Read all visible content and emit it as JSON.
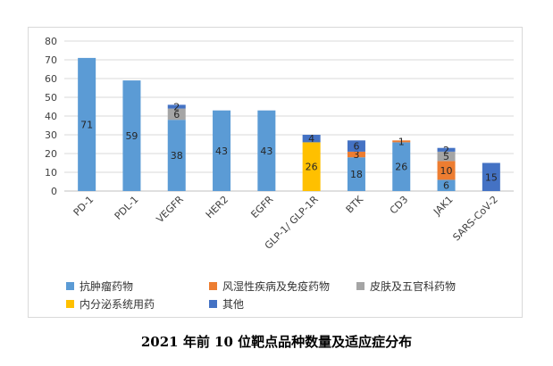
{
  "caption": "2021 年前 10 位靶点品种数量及适应症分布",
  "chart_data": {
    "type": "bar",
    "stacked": true,
    "title": "",
    "xlabel": "",
    "ylabel": "",
    "ylim": [
      0,
      80
    ],
    "yticks": [
      0,
      10,
      20,
      30,
      40,
      50,
      60,
      70,
      80
    ],
    "grid": true,
    "legend_position": "bottom",
    "categories": [
      "PD-1",
      "PDL-1",
      "VEGFR",
      "HER2",
      "EGFR",
      "GLP-1/ GLP-1R",
      "BTK",
      "CD3",
      "JAK1",
      "SARS-CoV-2"
    ],
    "series": [
      {
        "name": "抗肿瘤药物",
        "color": "#5b9bd5",
        "values": [
          71,
          59,
          38,
          43,
          43,
          null,
          18,
          26,
          6,
          null
        ]
      },
      {
        "name": "风湿性疾病及免疫药物",
        "color": "#ed7d31",
        "values": [
          null,
          null,
          null,
          null,
          null,
          null,
          3,
          1,
          10,
          null
        ]
      },
      {
        "name": "皮肤及五官科药物",
        "color": "#a5a5a5",
        "values": [
          null,
          null,
          6,
          null,
          null,
          null,
          null,
          null,
          5,
          null
        ]
      },
      {
        "name": "内分泌系统用药",
        "color": "#ffc000",
        "values": [
          null,
          null,
          null,
          null,
          null,
          26,
          null,
          null,
          null,
          null
        ]
      },
      {
        "name": "其他",
        "color": "#4472c4",
        "values": [
          null,
          null,
          2,
          null,
          null,
          4,
          6,
          null,
          2,
          15
        ]
      }
    ]
  }
}
